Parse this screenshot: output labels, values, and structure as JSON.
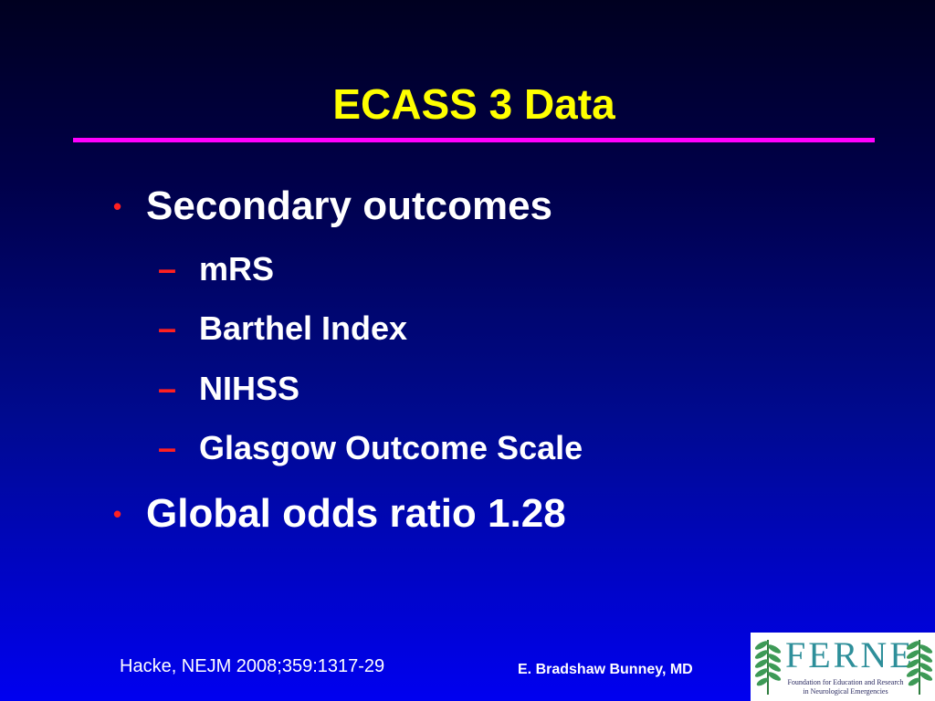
{
  "slide": {
    "title": "ECASS 3 Data",
    "bullets": [
      {
        "marker": "•",
        "text": "Secondary outcomes",
        "subitems": [
          {
            "marker": "–",
            "text": "mRS"
          },
          {
            "marker": "–",
            "text": "Barthel Index"
          },
          {
            "marker": "–",
            "text": "NIHSS"
          },
          {
            "marker": "–",
            "text": "Glasgow Outcome Scale"
          }
        ]
      },
      {
        "marker": "•",
        "text": "Global odds ratio 1.28"
      }
    ]
  },
  "footer": {
    "citation": "Hacke, NEJM 2008;359:1317-29",
    "presenter": "E. Bradshaw Bunney, MD"
  },
  "logo": {
    "name": "FERNE",
    "line1": "Foundation for Education and Research",
    "line2": "in Neurological Emergencies"
  },
  "colors": {
    "background_top": "#000020",
    "background_bottom": "#0000f0",
    "title": "#ffff00",
    "title_rule": "#ff00ff",
    "body_text": "#ffffff",
    "bullet_marker": "#ff2020",
    "logo_accent": "#2e8f9a"
  },
  "icons": {
    "logo_leaves": "fern-leaf-icon"
  }
}
